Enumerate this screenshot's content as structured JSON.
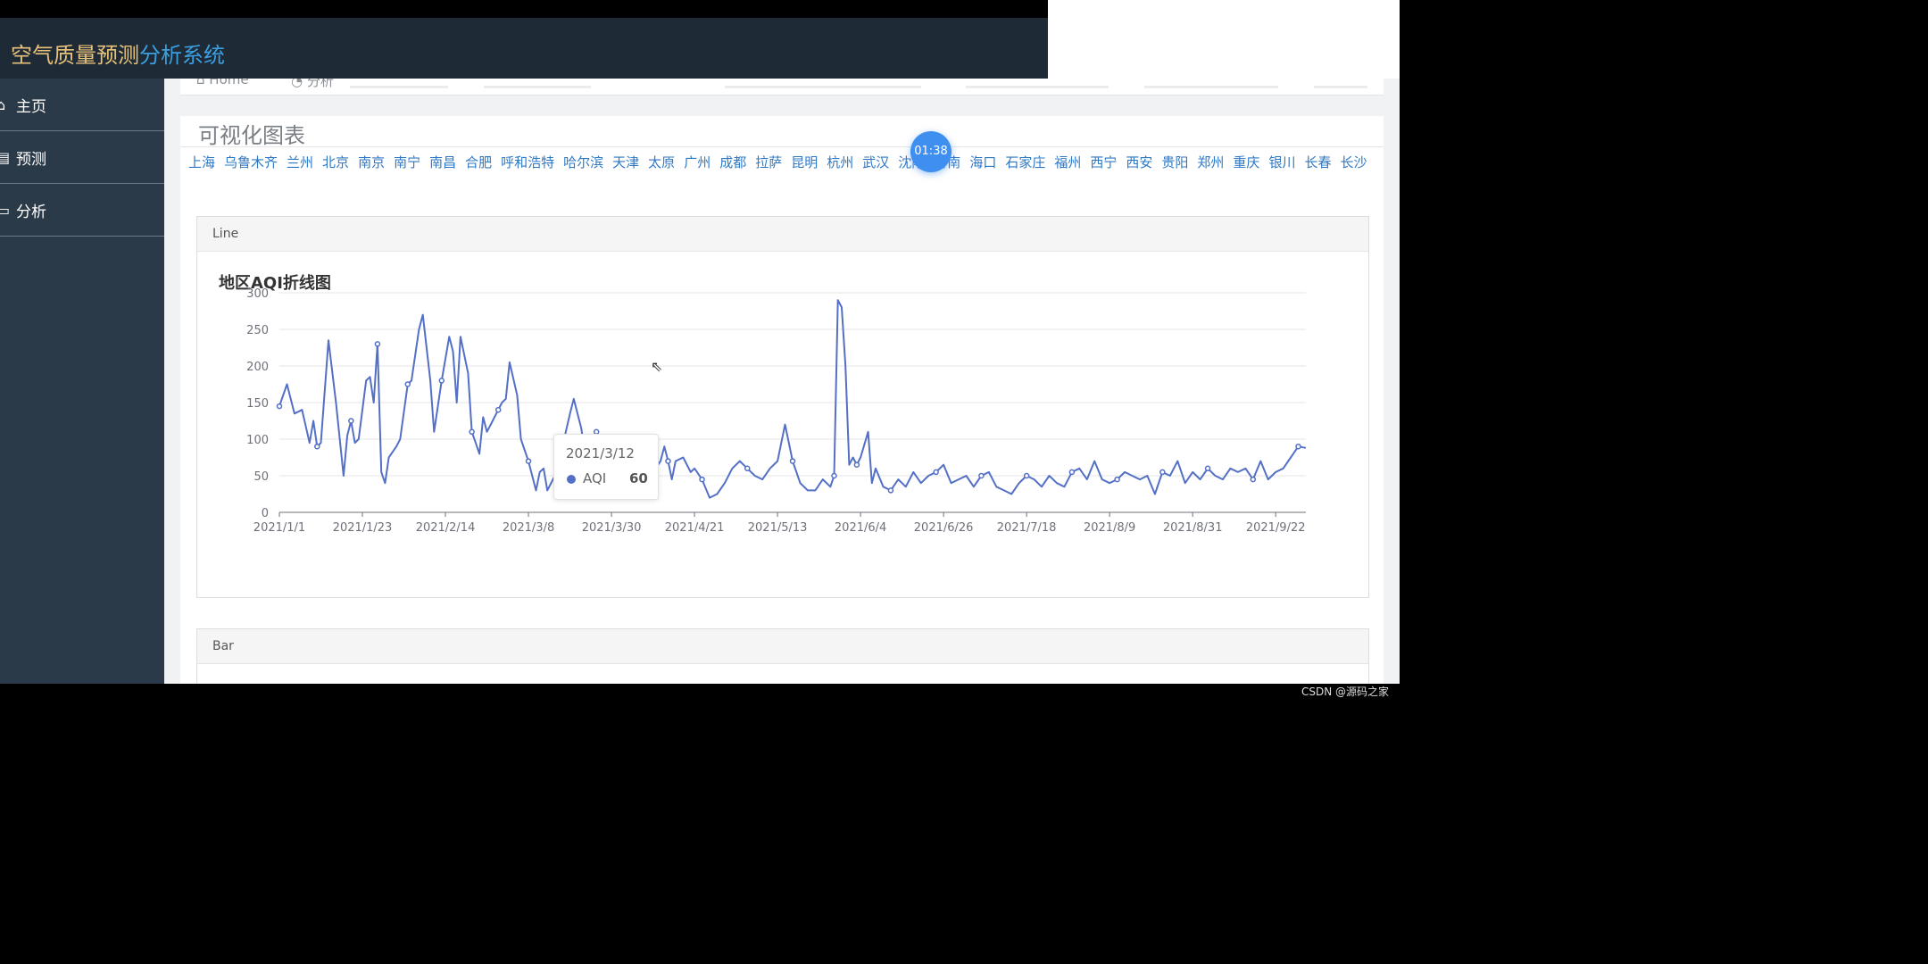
{
  "app": {
    "title_part1": "空气质量预测",
    "title_part2": "分析系统"
  },
  "sidebar": {
    "items": [
      {
        "label": "主页",
        "icon": "home-icon"
      },
      {
        "label": "预测",
        "icon": "document-icon"
      },
      {
        "label": "分析",
        "icon": "monitor-icon"
      }
    ]
  },
  "breadcrumb": {
    "home": "Home",
    "current": "分析"
  },
  "panel": {
    "title": "可视化图表"
  },
  "cities": [
    "上海",
    "乌鲁木齐",
    "兰州",
    "北京",
    "南京",
    "南宁",
    "南昌",
    "合肥",
    "呼和浩特",
    "哈尔滨",
    "天津",
    "太原",
    "广州",
    "成都",
    "拉萨",
    "昆明",
    "杭州",
    "武汉",
    "沈阳",
    "济南",
    "海口",
    "石家庄",
    "福州",
    "西宁",
    "西安",
    "贵阳",
    "郑州",
    "重庆",
    "银川",
    "长春",
    "长沙"
  ],
  "line_card": {
    "header": "Line",
    "chart_title": "地区AQI折线图"
  },
  "bar_card": {
    "header": "Bar"
  },
  "badge": {
    "time": "01:38"
  },
  "tooltip": {
    "date": "2021/3/12",
    "series": "AQI",
    "value": "60"
  },
  "watermark": "CSDN @源码之家",
  "colors": {
    "series": "#5470c6",
    "header_bg": "#1e2a36",
    "sidebar_bg": "#2b3a48",
    "link": "#2f78c4"
  },
  "chart_data": {
    "type": "line",
    "title": "地区AQI折线图",
    "series": [
      {
        "name": "AQI"
      }
    ],
    "ylim": [
      0,
      300
    ],
    "y_ticks": [
      "0",
      "50",
      "100",
      "150",
      "200",
      "250",
      "300"
    ],
    "x_ticks": [
      "2021/1/1",
      "2021/1/23",
      "2021/2/14",
      "2021/3/8",
      "2021/3/30",
      "2021/4/21",
      "2021/5/13",
      "2021/6/4",
      "2021/6/26",
      "2021/7/18",
      "2021/8/9",
      "2021/8/31",
      "2021/9/22"
    ],
    "x_range": [
      "2021-01-01",
      "2021-09-30"
    ],
    "keypoints": [
      [
        "2021-01-01",
        145
      ],
      [
        "2021-01-03",
        175
      ],
      [
        "2021-01-05",
        135
      ],
      [
        "2021-01-07",
        140
      ],
      [
        "2021-01-09",
        95
      ],
      [
        "2021-01-10",
        125
      ],
      [
        "2021-01-11",
        90
      ],
      [
        "2021-01-12",
        95
      ],
      [
        "2021-01-14",
        235
      ],
      [
        "2021-01-16",
        150
      ],
      [
        "2021-01-18",
        50
      ],
      [
        "2021-01-19",
        105
      ],
      [
        "2021-01-20",
        125
      ],
      [
        "2021-01-21",
        95
      ],
      [
        "2021-01-22",
        100
      ],
      [
        "2021-01-24",
        180
      ],
      [
        "2021-01-25",
        185
      ],
      [
        "2021-01-26",
        150
      ],
      [
        "2021-01-27",
        230
      ],
      [
        "2021-01-28",
        55
      ],
      [
        "2021-01-29",
        40
      ],
      [
        "2021-01-30",
        75
      ],
      [
        "2021-02-01",
        90
      ],
      [
        "2021-02-02",
        100
      ],
      [
        "2021-02-04",
        175
      ],
      [
        "2021-02-05",
        180
      ],
      [
        "2021-02-07",
        250
      ],
      [
        "2021-02-08",
        270
      ],
      [
        "2021-02-10",
        180
      ],
      [
        "2021-02-11",
        110
      ],
      [
        "2021-02-13",
        180
      ],
      [
        "2021-02-15",
        240
      ],
      [
        "2021-02-16",
        220
      ],
      [
        "2021-02-17",
        150
      ],
      [
        "2021-02-18",
        240
      ],
      [
        "2021-02-20",
        190
      ],
      [
        "2021-02-21",
        110
      ],
      [
        "2021-02-22",
        95
      ],
      [
        "2021-02-23",
        80
      ],
      [
        "2021-02-24",
        130
      ],
      [
        "2021-02-25",
        110
      ],
      [
        "2021-02-26",
        120
      ],
      [
        "2021-02-28",
        140
      ],
      [
        "2021-03-01",
        150
      ],
      [
        "2021-03-02",
        155
      ],
      [
        "2021-03-03",
        205
      ],
      [
        "2021-03-05",
        160
      ],
      [
        "2021-03-06",
        100
      ],
      [
        "2021-03-08",
        70
      ],
      [
        "2021-03-10",
        30
      ],
      [
        "2021-03-11",
        55
      ],
      [
        "2021-03-12",
        60
      ],
      [
        "2021-03-13",
        30
      ],
      [
        "2021-03-15",
        50
      ],
      [
        "2021-03-17",
        90
      ],
      [
        "2021-03-19",
        135
      ],
      [
        "2021-03-20",
        155
      ],
      [
        "2021-03-22",
        115
      ],
      [
        "2021-03-23",
        80
      ],
      [
        "2021-03-25",
        60
      ],
      [
        "2021-03-26",
        110
      ],
      [
        "2021-03-27",
        95
      ],
      [
        "2021-03-29",
        95
      ],
      [
        "2021-03-30",
        65
      ],
      [
        "2021-03-31",
        65
      ],
      [
        "2021-04-02",
        55
      ],
      [
        "2021-04-04",
        35
      ],
      [
        "2021-04-06",
        30
      ],
      [
        "2021-04-08",
        45
      ],
      [
        "2021-04-10",
        55
      ],
      [
        "2021-04-12",
        70
      ],
      [
        "2021-04-13",
        90
      ],
      [
        "2021-04-14",
        70
      ],
      [
        "2021-04-15",
        45
      ],
      [
        "2021-04-16",
        70
      ],
      [
        "2021-04-18",
        75
      ],
      [
        "2021-04-20",
        55
      ],
      [
        "2021-04-21",
        60
      ],
      [
        "2021-04-23",
        45
      ],
      [
        "2021-04-25",
        20
      ],
      [
        "2021-04-27",
        25
      ],
      [
        "2021-04-29",
        40
      ],
      [
        "2021-05-01",
        60
      ],
      [
        "2021-05-03",
        70
      ],
      [
        "2021-05-05",
        60
      ],
      [
        "2021-05-07",
        50
      ],
      [
        "2021-05-09",
        45
      ],
      [
        "2021-05-11",
        60
      ],
      [
        "2021-05-13",
        70
      ],
      [
        "2021-05-15",
        120
      ],
      [
        "2021-05-17",
        70
      ],
      [
        "2021-05-19",
        40
      ],
      [
        "2021-05-21",
        30
      ],
      [
        "2021-05-23",
        30
      ],
      [
        "2021-05-25",
        45
      ],
      [
        "2021-05-27",
        35
      ],
      [
        "2021-05-28",
        50
      ],
      [
        "2021-05-29",
        290
      ],
      [
        "2021-05-30",
        280
      ],
      [
        "2021-05-31",
        200
      ],
      [
        "2021-06-01",
        65
      ],
      [
        "2021-06-02",
        75
      ],
      [
        "2021-06-03",
        65
      ],
      [
        "2021-06-04",
        75
      ],
      [
        "2021-06-06",
        110
      ],
      [
        "2021-06-07",
        40
      ],
      [
        "2021-06-08",
        60
      ],
      [
        "2021-06-10",
        35
      ],
      [
        "2021-06-12",
        30
      ],
      [
        "2021-06-14",
        45
      ],
      [
        "2021-06-16",
        35
      ],
      [
        "2021-06-18",
        55
      ],
      [
        "2021-06-20",
        40
      ],
      [
        "2021-06-22",
        50
      ],
      [
        "2021-06-24",
        55
      ],
      [
        "2021-06-26",
        65
      ],
      [
        "2021-06-28",
        40
      ],
      [
        "2021-06-30",
        45
      ],
      [
        "2021-07-02",
        50
      ],
      [
        "2021-07-04",
        35
      ],
      [
        "2021-07-06",
        50
      ],
      [
        "2021-07-08",
        55
      ],
      [
        "2021-07-10",
        35
      ],
      [
        "2021-07-12",
        30
      ],
      [
        "2021-07-14",
        25
      ],
      [
        "2021-07-16",
        40
      ],
      [
        "2021-07-18",
        50
      ],
      [
        "2021-07-20",
        45
      ],
      [
        "2021-07-22",
        35
      ],
      [
        "2021-07-24",
        50
      ],
      [
        "2021-07-26",
        40
      ],
      [
        "2021-07-28",
        35
      ],
      [
        "2021-07-30",
        55
      ],
      [
        "2021-08-01",
        60
      ],
      [
        "2021-08-03",
        45
      ],
      [
        "2021-08-05",
        70
      ],
      [
        "2021-08-07",
        45
      ],
      [
        "2021-08-09",
        40
      ],
      [
        "2021-08-11",
        45
      ],
      [
        "2021-08-13",
        55
      ],
      [
        "2021-08-15",
        50
      ],
      [
        "2021-08-17",
        45
      ],
      [
        "2021-08-19",
        50
      ],
      [
        "2021-08-21",
        25
      ],
      [
        "2021-08-23",
        55
      ],
      [
        "2021-08-25",
        50
      ],
      [
        "2021-08-27",
        70
      ],
      [
        "2021-08-29",
        40
      ],
      [
        "2021-08-31",
        55
      ],
      [
        "2021-09-02",
        45
      ],
      [
        "2021-09-04",
        60
      ],
      [
        "2021-09-06",
        50
      ],
      [
        "2021-09-08",
        45
      ],
      [
        "2021-09-10",
        60
      ],
      [
        "2021-09-12",
        55
      ],
      [
        "2021-09-14",
        60
      ],
      [
        "2021-09-16",
        45
      ],
      [
        "2021-09-18",
        70
      ],
      [
        "2021-09-20",
        45
      ],
      [
        "2021-09-22",
        55
      ],
      [
        "2021-09-24",
        60
      ],
      [
        "2021-09-26",
        75
      ],
      [
        "2021-09-28",
        90
      ],
      [
        "2021-09-30",
        88
      ]
    ]
  }
}
